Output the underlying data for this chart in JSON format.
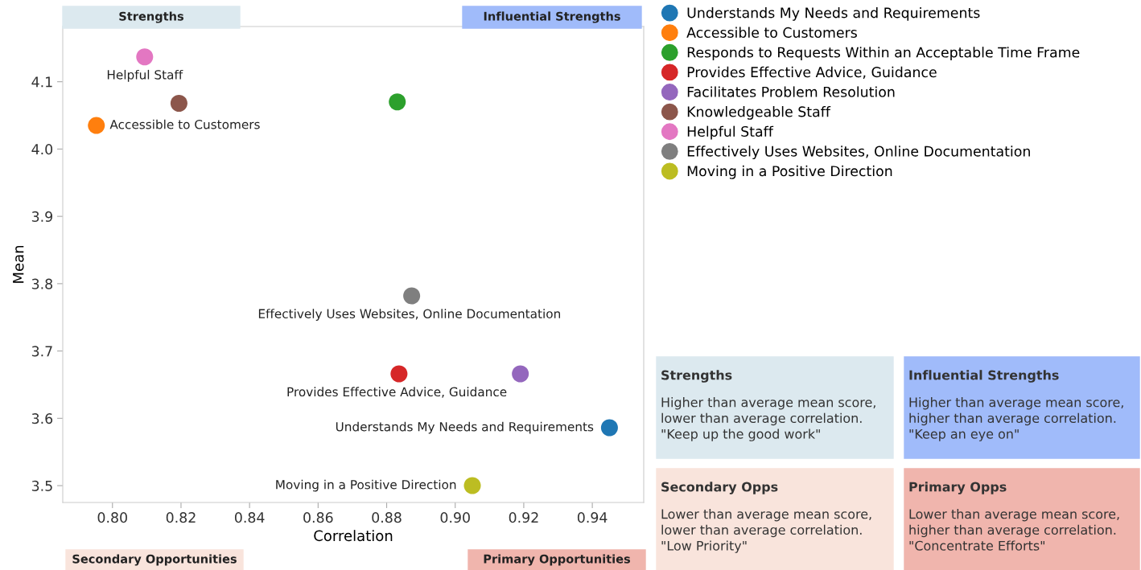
{
  "chart_data": {
    "type": "scatter",
    "xlabel": "Correlation",
    "ylabel": "Mean",
    "xlim": [
      0.7855,
      0.955
    ],
    "ylim": [
      3.475,
      4.182
    ],
    "xticks": [
      {
        "value": 0.8,
        "label": "0.80"
      },
      {
        "value": 0.82,
        "label": "0.82"
      },
      {
        "value": 0.84,
        "label": "0.84"
      },
      {
        "value": 0.86,
        "label": "0.86"
      },
      {
        "value": 0.88,
        "label": "0.88"
      },
      {
        "value": 0.9,
        "label": "0.90"
      },
      {
        "value": 0.92,
        "label": "0.92"
      },
      {
        "value": 0.94,
        "label": "0.94"
      }
    ],
    "yticks": [
      {
        "value": 3.5,
        "label": "3.5"
      },
      {
        "value": 3.6,
        "label": "3.6"
      },
      {
        "value": 3.7,
        "label": "3.7"
      },
      {
        "value": 3.8,
        "label": "3.8"
      },
      {
        "value": 3.9,
        "label": "3.9"
      },
      {
        "value": 4.0,
        "label": "4.0"
      },
      {
        "value": 4.1,
        "label": "4.1"
      }
    ],
    "grid": false,
    "legend": "top right",
    "marker": "circle",
    "series": [
      {
        "name": "Understands My Needs and Requirements",
        "color": "#1f77b4",
        "x": [
          0.945
        ],
        "values": [
          3.586
        ]
      },
      {
        "name": "Accessible to Customers",
        "color": "#ff7f0e",
        "x": [
          0.7953
        ],
        "values": [
          4.035
        ]
      },
      {
        "name": "Responds to Requests Within an Acceptable Time Frame",
        "color": "#2ca02c",
        "x": [
          0.8831
        ],
        "values": [
          4.07
        ]
      },
      {
        "name": "Provides Effective Advice, Guidance",
        "color": "#d62728",
        "x": [
          0.8836
        ],
        "values": [
          3.666
        ]
      },
      {
        "name": "Facilitates Problem Resolution",
        "color": "#9467bd",
        "x": [
          0.919
        ],
        "values": [
          3.666
        ]
      },
      {
        "name": "Knowledgeable Staff",
        "color": "#8c564b",
        "x": [
          0.8194
        ],
        "values": [
          4.068
        ]
      },
      {
        "name": "Helpful Staff",
        "color": "#e377c2",
        "x": [
          0.8094
        ],
        "values": [
          4.137
        ]
      },
      {
        "name": "Effectively Uses Websites, Online Documentation",
        "color": "#7f7f7f",
        "x": [
          0.8873
        ],
        "values": [
          3.782
        ]
      },
      {
        "name": "Moving in a Positive Direction",
        "color": "#bcbd22",
        "x": [
          0.905
        ],
        "values": [
          3.5
        ]
      }
    ],
    "annotations": [
      {
        "text": "Helpful Staff",
        "x": 0.8094,
        "y": 4.137
      },
      {
        "text": "Accessible to Customers",
        "x": 0.7953,
        "y": 4.035
      },
      {
        "text": "Effectively Uses Websites, Online Documentation",
        "x": 0.8873,
        "y": 3.782
      },
      {
        "text": "Provides Effective Advice, Guidance",
        "x": 0.8836,
        "y": 3.666
      },
      {
        "text": "Understands My Needs and Requirements",
        "x": 0.945,
        "y": 3.586
      },
      {
        "text": "Moving in a Positive Direction",
        "x": 0.905,
        "y": 3.5
      },
      "Strengths",
      "Influential Strengths",
      "Secondary Opportunities",
      "Primary Opportunities",
      "Strengths\nHigher than average mean score,\nlower than average correlation.\n\"Keep up the good work\"",
      "Influential Strengths\nHigher than average mean score,\nhigher than average correlation.\n\"Keep an eye on\"",
      "Secondary Opps\nLower than average mean score,\nlower than average correlation.\n\"Low Priority\"",
      "Primary Opps\nLower than average mean score,\nhigher than average correlation.\n\"Concentrate Efforts\""
    ]
  }
}
